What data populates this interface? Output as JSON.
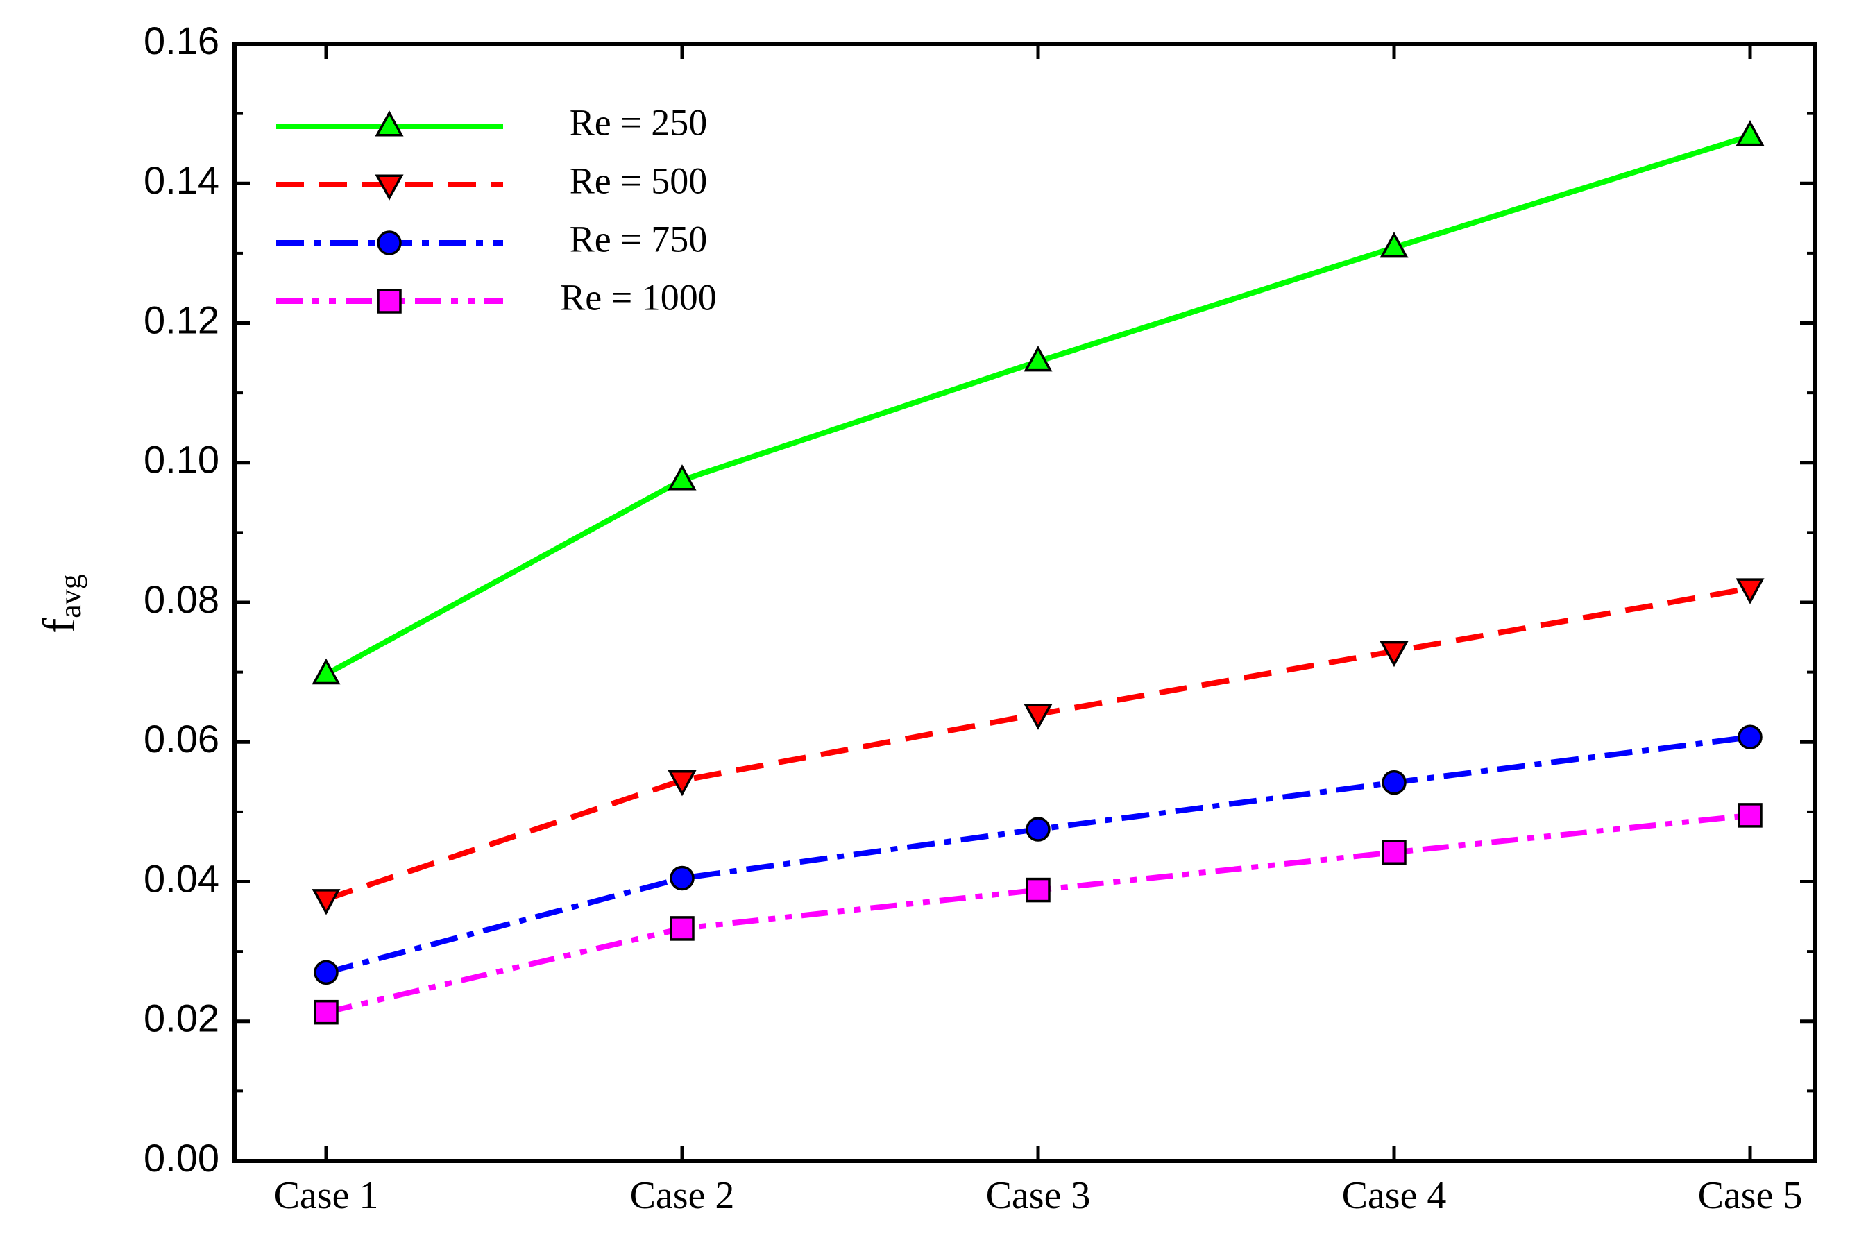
{
  "chart_data": {
    "type": "line",
    "title": "",
    "xlabel": "",
    "ylabel": "f",
    "ylabel_subscript": "avg",
    "categories": [
      "Case 1",
      "Case 2",
      "Case 3",
      "Case 4",
      "Case 5"
    ],
    "ylim": [
      0.0,
      0.16
    ],
    "yticks": [
      "0.00",
      "0.02",
      "0.04",
      "0.06",
      "0.08",
      "0.10",
      "0.12",
      "0.14",
      "0.16"
    ],
    "grid": false,
    "legend_position": "top-left",
    "series": [
      {
        "name": "Re = 250",
        "color": "#00ff00",
        "marker": "triangle-up",
        "dash": "solid",
        "values": [
          0.0697,
          0.0975,
          0.1145,
          0.1308,
          0.1468
        ]
      },
      {
        "name": "Re = 500",
        "color": "#ff0000",
        "marker": "triangle-down",
        "dash": "dash",
        "values": [
          0.0375,
          0.0545,
          0.064,
          0.073,
          0.082
        ]
      },
      {
        "name": "Re = 750",
        "color": "#0000ff",
        "marker": "circle",
        "dash": "dashdot",
        "values": [
          0.027,
          0.0405,
          0.0475,
          0.0542,
          0.0607
        ]
      },
      {
        "name": "Re = 1000",
        "color": "#ff00ff",
        "marker": "square",
        "dash": "dashdotdot",
        "values": [
          0.0213,
          0.0333,
          0.0388,
          0.0442,
          0.0495
        ]
      }
    ]
  }
}
